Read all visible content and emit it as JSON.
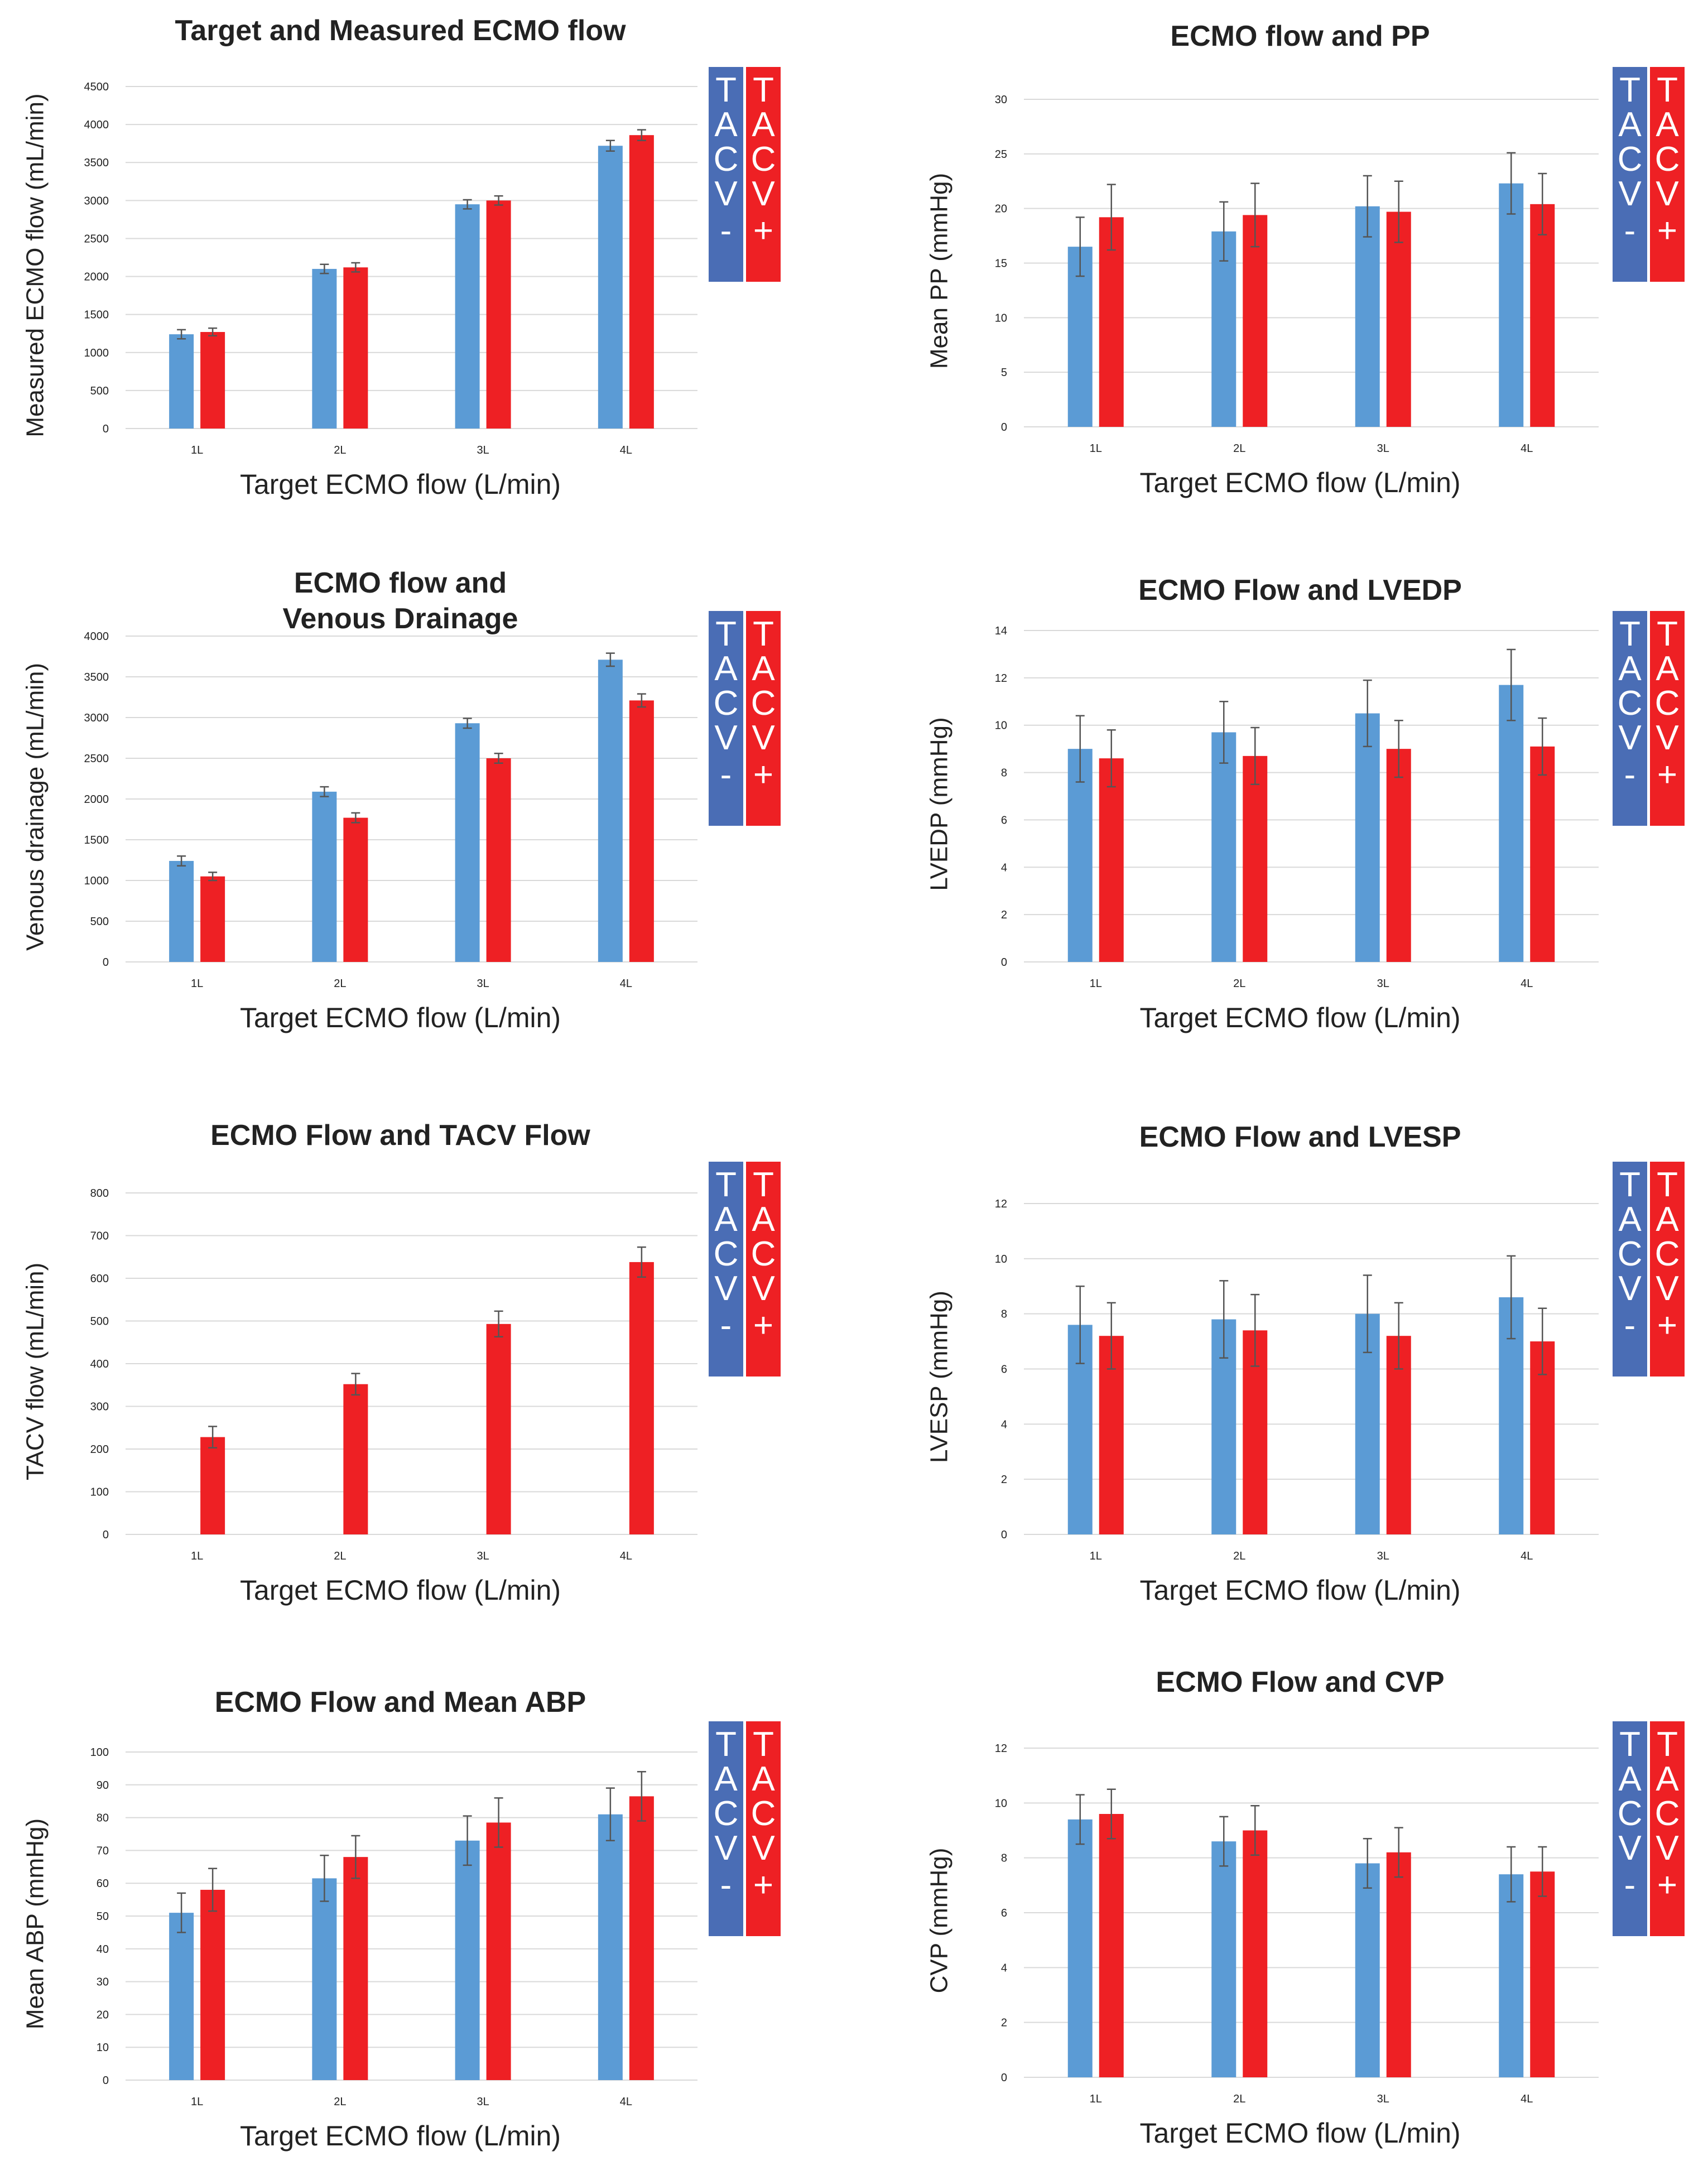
{
  "colors": {
    "tacv_minus": "#5B9BD5",
    "tacv_plus": "#EE2024",
    "legend_minus_bg": "#4A6DB5",
    "legend_plus_bg": "#EE2024",
    "grid": "#D9D9D9",
    "text": "#222222",
    "error_bar": "#555555"
  },
  "legend": {
    "minus": {
      "letters": [
        "T",
        "A",
        "C",
        "V"
      ],
      "sign": "-"
    },
    "plus": {
      "letters": [
        "T",
        "A",
        "C",
        "V"
      ],
      "sign": "+"
    }
  },
  "chart_data": [
    {
      "id": "measured-flow",
      "type": "bar",
      "title": [
        "Target and Measured ECMO flow"
      ],
      "xlabel": "Target ECMO flow (L/min)",
      "ylabel": "Measured ECMO flow (mL/min)",
      "categories": [
        "1L",
        "2L",
        "3L",
        "4L"
      ],
      "ylim": [
        0,
        4500
      ],
      "yticks": [
        0,
        500,
        1000,
        1500,
        2000,
        2500,
        3000,
        3500,
        4000,
        4500
      ],
      "grid": true,
      "series": [
        {
          "name": "TACV-",
          "values": [
            1240,
            2100,
            2950,
            3720
          ],
          "errors": [
            60,
            60,
            60,
            70
          ]
        },
        {
          "name": "TACV+",
          "values": [
            1270,
            2120,
            3000,
            3860
          ],
          "errors": [
            50,
            60,
            60,
            70
          ]
        }
      ]
    },
    {
      "id": "pp",
      "type": "bar",
      "title": [
        "ECMO flow and PP"
      ],
      "xlabel": "Target ECMO flow (L/min)",
      "ylabel": "Mean PP (mmHg)",
      "categories": [
        "1L",
        "2L",
        "3L",
        "4L"
      ],
      "ylim": [
        0,
        30
      ],
      "yticks": [
        0,
        5,
        10,
        15,
        20,
        25,
        30
      ],
      "grid": true,
      "series": [
        {
          "name": "TACV-",
          "values": [
            16.5,
            17.9,
            20.2,
            22.3
          ],
          "errors": [
            2.7,
            2.7,
            2.8,
            2.8
          ]
        },
        {
          "name": "TACV+",
          "values": [
            19.2,
            19.4,
            19.7,
            20.4
          ],
          "errors": [
            3.0,
            2.9,
            2.8,
            2.8
          ]
        }
      ]
    },
    {
      "id": "venous-drainage",
      "type": "bar",
      "title": [
        "ECMO flow and",
        "Venous Drainage"
      ],
      "xlabel": "Target ECMO flow (L/min)",
      "ylabel": "Venous drainage (mL/min)",
      "categories": [
        "1L",
        "2L",
        "3L",
        "4L"
      ],
      "ylim": [
        0,
        4000
      ],
      "yticks": [
        0,
        500,
        1000,
        1500,
        2000,
        2500,
        3000,
        3500,
        4000
      ],
      "grid": true,
      "series": [
        {
          "name": "TACV-",
          "values": [
            1240,
            2090,
            2930,
            3710
          ],
          "errors": [
            60,
            60,
            60,
            80
          ]
        },
        {
          "name": "TACV+",
          "values": [
            1050,
            1770,
            2500,
            3210
          ],
          "errors": [
            50,
            60,
            60,
            80
          ]
        }
      ]
    },
    {
      "id": "lvedp",
      "type": "bar",
      "title": [
        "ECMO Flow and LVEDP"
      ],
      "xlabel": "Target ECMO flow (L/min)",
      "ylabel": "LVEDP (mmHg)",
      "categories": [
        "1L",
        "2L",
        "3L",
        "4L"
      ],
      "ylim": [
        0,
        14
      ],
      "yticks": [
        0,
        2,
        4,
        6,
        8,
        10,
        12,
        14
      ],
      "grid": true,
      "series": [
        {
          "name": "TACV-",
          "values": [
            9.0,
            9.7,
            10.5,
            11.7
          ],
          "errors": [
            1.4,
            1.3,
            1.4,
            1.5
          ]
        },
        {
          "name": "TACV+",
          "values": [
            8.6,
            8.7,
            9.0,
            9.1
          ],
          "errors": [
            1.2,
            1.2,
            1.2,
            1.2
          ]
        }
      ]
    },
    {
      "id": "tacv-flow",
      "type": "bar",
      "title": [
        "ECMO Flow and TACV Flow"
      ],
      "xlabel": "Target ECMO flow (L/min)",
      "ylabel": "TACV flow (mL/min)",
      "categories": [
        "1L",
        "2L",
        "3L",
        "4L"
      ],
      "ylim": [
        0,
        800
      ],
      "yticks": [
        0,
        100,
        200,
        300,
        400,
        500,
        600,
        700,
        800
      ],
      "grid": true,
      "series": [
        {
          "name": "TACV-",
          "values": [
            null,
            null,
            null,
            null
          ],
          "errors": [
            null,
            null,
            null,
            null
          ]
        },
        {
          "name": "TACV+",
          "values": [
            228,
            352,
            493,
            638
          ],
          "errors": [
            25,
            25,
            30,
            35
          ]
        }
      ]
    },
    {
      "id": "lvesp",
      "type": "bar",
      "title": [
        "ECMO Flow and LVESP"
      ],
      "xlabel": "Target ECMO flow (L/min)",
      "ylabel": "LVESP (mmHg)",
      "categories": [
        "1L",
        "2L",
        "3L",
        "4L"
      ],
      "ylim": [
        0,
        12
      ],
      "yticks": [
        0,
        2,
        4,
        6,
        8,
        10,
        12
      ],
      "grid": true,
      "series": [
        {
          "name": "TACV-",
          "values": [
            7.6,
            7.8,
            8.0,
            8.6
          ],
          "errors": [
            1.4,
            1.4,
            1.4,
            1.5
          ]
        },
        {
          "name": "TACV+",
          "values": [
            7.2,
            7.4,
            7.2,
            7.0
          ],
          "errors": [
            1.2,
            1.3,
            1.2,
            1.2
          ]
        }
      ]
    },
    {
      "id": "abp",
      "type": "bar",
      "title": [
        "ECMO Flow and Mean ABP"
      ],
      "xlabel": "Target ECMO flow (L/min)",
      "ylabel": "Mean ABP (mmHg)",
      "categories": [
        "1L",
        "2L",
        "3L",
        "4L"
      ],
      "ylim": [
        0,
        100
      ],
      "yticks": [
        0,
        10,
        20,
        30,
        40,
        50,
        60,
        70,
        80,
        90,
        100
      ],
      "grid": true,
      "series": [
        {
          "name": "TACV-",
          "values": [
            51,
            61.5,
            73,
            81
          ],
          "errors": [
            6,
            7,
            7.5,
            8
          ]
        },
        {
          "name": "TACV+",
          "values": [
            58,
            68,
            78.5,
            86.5
          ],
          "errors": [
            6.5,
            6.5,
            7.5,
            7.5
          ]
        }
      ]
    },
    {
      "id": "cvp",
      "type": "bar",
      "title": [
        "ECMO Flow and CVP"
      ],
      "xlabel": "Target ECMO flow (L/min)",
      "ylabel": "CVP (mmHg)",
      "categories": [
        "1L",
        "2L",
        "3L",
        "4L"
      ],
      "ylim": [
        0,
        12
      ],
      "yticks": [
        0,
        2,
        4,
        6,
        8,
        10,
        12
      ],
      "grid": true,
      "series": [
        {
          "name": "TACV-",
          "values": [
            9.4,
            8.6,
            7.8,
            7.4
          ],
          "errors": [
            0.9,
            0.9,
            0.9,
            1.0
          ]
        },
        {
          "name": "TACV+",
          "values": [
            9.6,
            9.0,
            8.2,
            7.5
          ],
          "errors": [
            0.9,
            0.9,
            0.9,
            0.9
          ]
        }
      ]
    }
  ]
}
